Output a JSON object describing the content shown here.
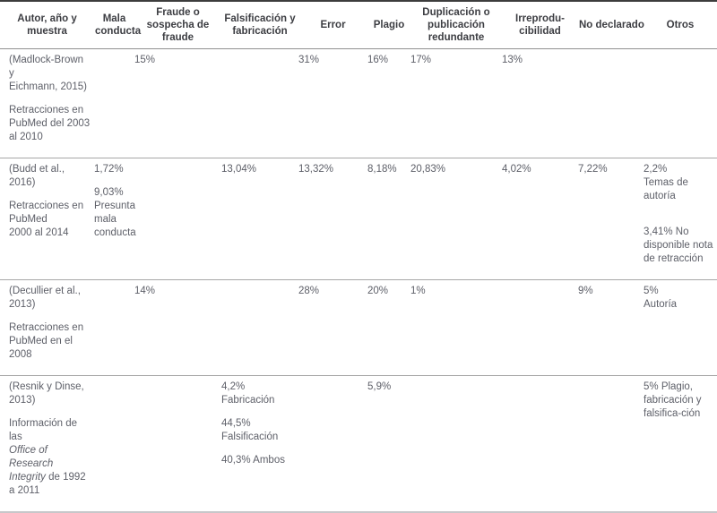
{
  "colors": {
    "body_text": "#5d5f68",
    "header_text": "#3c3d42",
    "top_border": "#3d3d3d",
    "header_rule": "#909090",
    "row_rule": "#a6a6a6",
    "bottom_border": "#c7c7ca"
  },
  "table": {
    "columns": [
      {
        "label": "Autor, año y muestra"
      },
      {
        "label": "Mala conducta"
      },
      {
        "label": "Fraude o sospecha de fraude"
      },
      {
        "label": "Falsificación y fabricación"
      },
      {
        "label": "Error"
      },
      {
        "label": "Plagio"
      },
      {
        "label": "Duplicación o publicación redundante"
      },
      {
        "label": "Irreprodu-cibilidad"
      },
      {
        "label": "No declarado"
      },
      {
        "label": "Otros"
      }
    ],
    "rows": [
      {
        "cells": [
          [
            "(Madlock-Brown y\nEichmann, 2015)",
            "Retracciones en\nPubMed del 2003\nal 2010"
          ],
          [],
          [
            "15%"
          ],
          [],
          [
            "31%"
          ],
          [
            "16%"
          ],
          [
            "17%"
          ],
          [
            "13%"
          ],
          [],
          []
        ]
      },
      {
        "cells": [
          [
            "(Budd et al., 2016)",
            "Retracciones en\nPubMed\n2000 al 2014"
          ],
          [
            "1,72%",
            "9,03%\nPresunta\nmala\nconducta"
          ],
          [],
          [
            "13,04%"
          ],
          [
            "13,32%"
          ],
          [
            "8,18%"
          ],
          [
            "20,83%"
          ],
          [
            "4,02%"
          ],
          [
            "7,22%"
          ],
          [
            "2,2%\nTemas de\nautoría",
            "",
            "3,41% No\ndisponible nota\nde retracción"
          ]
        ]
      },
      {
        "cells": [
          [
            "(Decullier et al.,\n2013)",
            "Retracciones en\nPubMed en el 2008"
          ],
          [],
          [
            "14%"
          ],
          [],
          [
            "28%"
          ],
          [
            "20%"
          ],
          [
            "1%"
          ],
          [],
          [
            "9%"
          ],
          [
            "5%\nAutoría"
          ]
        ]
      },
      {
        "cells": [
          [
            "(Resnik y Dinse,\n2013)",
            "Información de las\n*Office of Research*\n*Integrity* de 1992\na 2011"
          ],
          [],
          [],
          [
            "4,2%\nFabricación",
            "44,5%\nFalsificación",
            "40,3% Ambos"
          ],
          [],
          [
            "5,9%"
          ],
          [],
          [],
          [],
          [
            "5% Plagio,\nfabricación y\nfalsifica-ción"
          ]
        ]
      }
    ]
  }
}
